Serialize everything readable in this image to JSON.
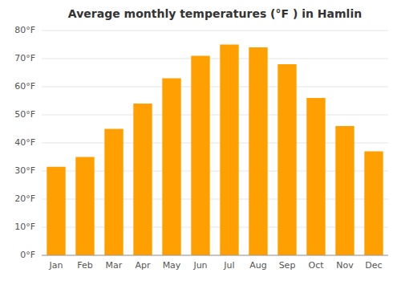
{
  "chart_data": {
    "type": "bar",
    "title": "Average monthly temperatures (°F ) in Hamlin",
    "categories": [
      "Jan",
      "Feb",
      "Mar",
      "Apr",
      "May",
      "Jun",
      "Jul",
      "Aug",
      "Sep",
      "Oct",
      "Nov",
      "Dec"
    ],
    "values": [
      31.5,
      35.0,
      45.0,
      54.0,
      63.0,
      71.0,
      75.0,
      74.0,
      68.0,
      56.0,
      46.0,
      37.0
    ],
    "color": "#FFA000",
    "ylim": [
      0,
      80
    ],
    "yticks": [
      {
        "value": 0,
        "label": "0°F"
      },
      {
        "value": 10,
        "label": "10°F"
      },
      {
        "value": 20,
        "label": "20°F"
      },
      {
        "value": 30,
        "label": "30°F"
      },
      {
        "value": 40,
        "label": "40°F"
      },
      {
        "value": 50,
        "label": "50°F"
      },
      {
        "value": 60,
        "label": "60°F"
      },
      {
        "value": 70,
        "label": "70°F"
      },
      {
        "value": 80,
        "label": "80°F"
      }
    ],
    "grid": true
  }
}
